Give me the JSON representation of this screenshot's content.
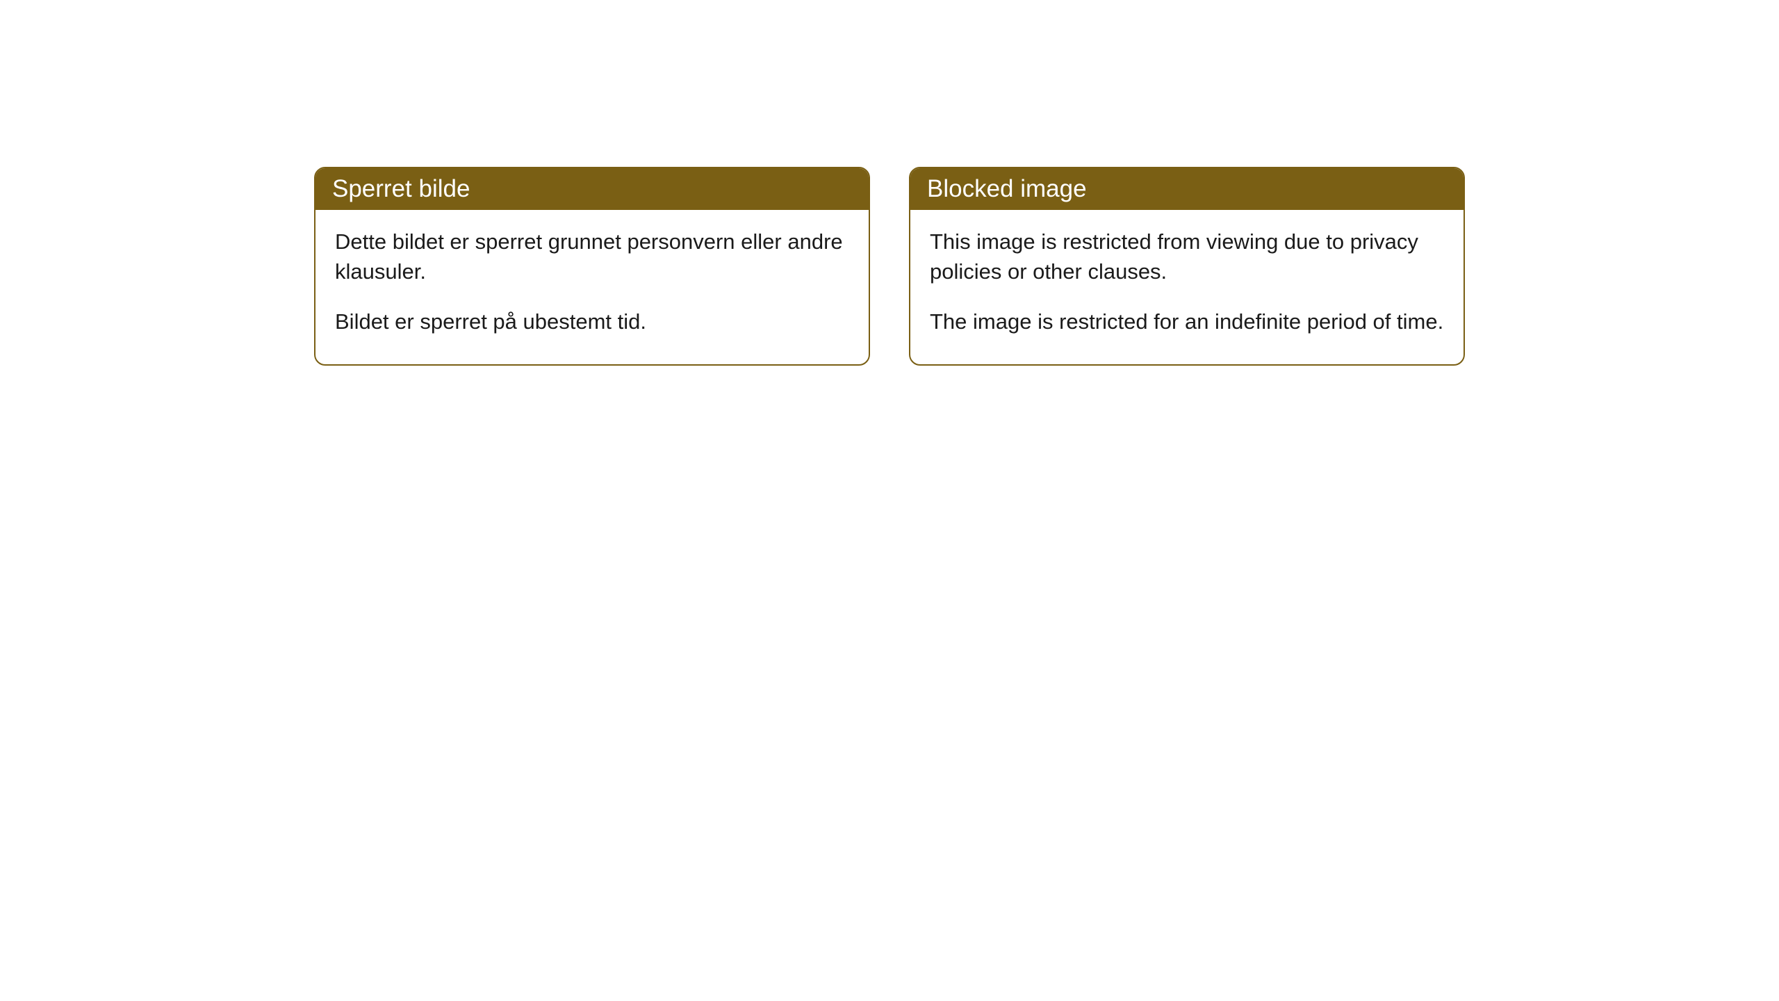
{
  "cards": [
    {
      "title": "Sperret bilde",
      "paragraph1": "Dette bildet er sperret grunnet personvern eller andre klausuler.",
      "paragraph2": "Bildet er sperret på ubestemt tid."
    },
    {
      "title": "Blocked image",
      "paragraph1": "This image is restricted from viewing due to privacy policies or other clauses.",
      "paragraph2": "The image is restricted for an indefinite period of time."
    }
  ],
  "styling": {
    "header_background": "#7a5f14",
    "header_text_color": "#ffffff",
    "border_color": "#7a5f14",
    "body_text_color": "#1a1a1a",
    "card_background": "#ffffff",
    "page_background": "#ffffff",
    "border_radius": 16,
    "header_fontsize": 35,
    "body_fontsize": 31
  }
}
